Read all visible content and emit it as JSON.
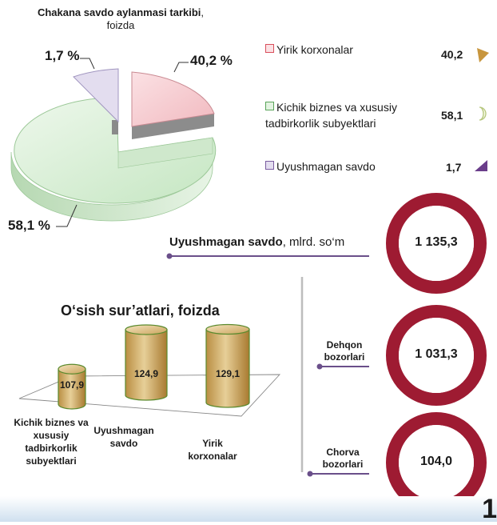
{
  "pie": {
    "title_bold": "Chakana savdo aylanmasi tarkibi",
    "title_unit": ", foizda",
    "labels": [
      "40,2 %",
      "58,1 %",
      "1,7 %"
    ]
  },
  "legend": [
    {
      "label": "Yirik korxonalar",
      "value": "40,2",
      "color": "#d94f5c",
      "icon_color": "#c8963e"
    },
    {
      "label": "Kichik biznes va xususiy tadbirkorlik subyektlari",
      "value": "58,1",
      "color": "#5aa55a",
      "icon_color": "#d9e8b0"
    },
    {
      "label": "Uyushmagan savdo",
      "value": "1,7",
      "color": "#7a5ca0",
      "icon_color": "#6a3d8a"
    }
  ],
  "uyushmagan": {
    "title_bold": "Uyushmagan savdo",
    "title_unit": ", mlrd. so‘m"
  },
  "rings": [
    {
      "value": "1 135,3",
      "side_label": ""
    },
    {
      "value": "1 031,3",
      "side_label": "Dehqon bozorlari"
    },
    {
      "value": "104,0",
      "side_label": "Chorva bozorlari"
    }
  ],
  "growth": {
    "title": "O‘sish sur’atlari, foizda"
  },
  "page_number": "1",
  "colors": {
    "ring": "#9e1b32",
    "cylinder": "#c9a55c",
    "cylinder_edge": "#5b8a2e",
    "accent_line": "#6a4f8a"
  },
  "chart_data": [
    {
      "type": "pie",
      "title": "Chakana savdo aylanmasi tarkibi, foizda",
      "categories": [
        "Yirik korxonalar",
        "Kichik biznes va xususiy tadbirkorlik subyektlari",
        "Uyushmagan savdo"
      ],
      "values": [
        40.2,
        58.1,
        1.7
      ]
    },
    {
      "type": "bar",
      "title": "O‘sish sur’atlari, foizda",
      "categories": [
        "Kichik biznes va xususiy tadbirkorlik subyektlari",
        "Uyushmagan savdo",
        "Yirik korxonalar"
      ],
      "values": [
        107.9,
        124.9,
        129.1
      ],
      "value_labels": [
        "107,9",
        "124,9",
        "129,1"
      ]
    }
  ]
}
